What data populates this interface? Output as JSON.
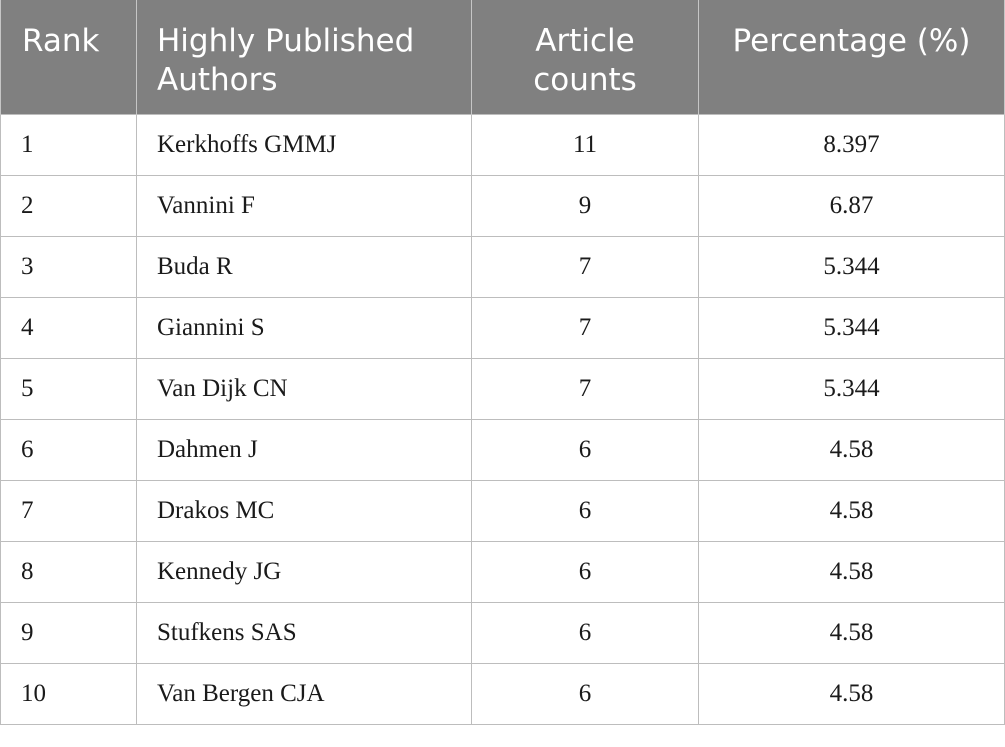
{
  "table": {
    "headers": {
      "rank": "Rank",
      "author_line1": "Highly Published",
      "author_line2": "Authors",
      "count_line1": "Article",
      "count_line2": "counts",
      "percentage": "Percentage (%)"
    },
    "rows": [
      {
        "rank": "1",
        "author": "Kerkhoffs GMMJ",
        "count": "11",
        "percentage": "8.397"
      },
      {
        "rank": "2",
        "author": "Vannini F",
        "count": "9",
        "percentage": "6.87"
      },
      {
        "rank": "3",
        "author": "Buda R",
        "count": "7",
        "percentage": "5.344"
      },
      {
        "rank": "4",
        "author": "Giannini S",
        "count": "7",
        "percentage": "5.344"
      },
      {
        "rank": "5",
        "author": "Van Dijk CN",
        "count": "7",
        "percentage": "5.344"
      },
      {
        "rank": "6",
        "author": "Dahmen J",
        "count": "6",
        "percentage": "4.58"
      },
      {
        "rank": "7",
        "author": "Drakos MC",
        "count": "6",
        "percentage": "4.58"
      },
      {
        "rank": "8",
        "author": "Kennedy JG",
        "count": "6",
        "percentage": "4.58"
      },
      {
        "rank": "9",
        "author": "Stufkens SAS",
        "count": "6",
        "percentage": "4.58"
      },
      {
        "rank": "10",
        "author": "Van Bergen CJA",
        "count": "6",
        "percentage": "4.58"
      }
    ]
  },
  "colors": {
    "header_background": "#808080",
    "header_text": "#ffffff",
    "grid_line": "#bdbdbd"
  }
}
